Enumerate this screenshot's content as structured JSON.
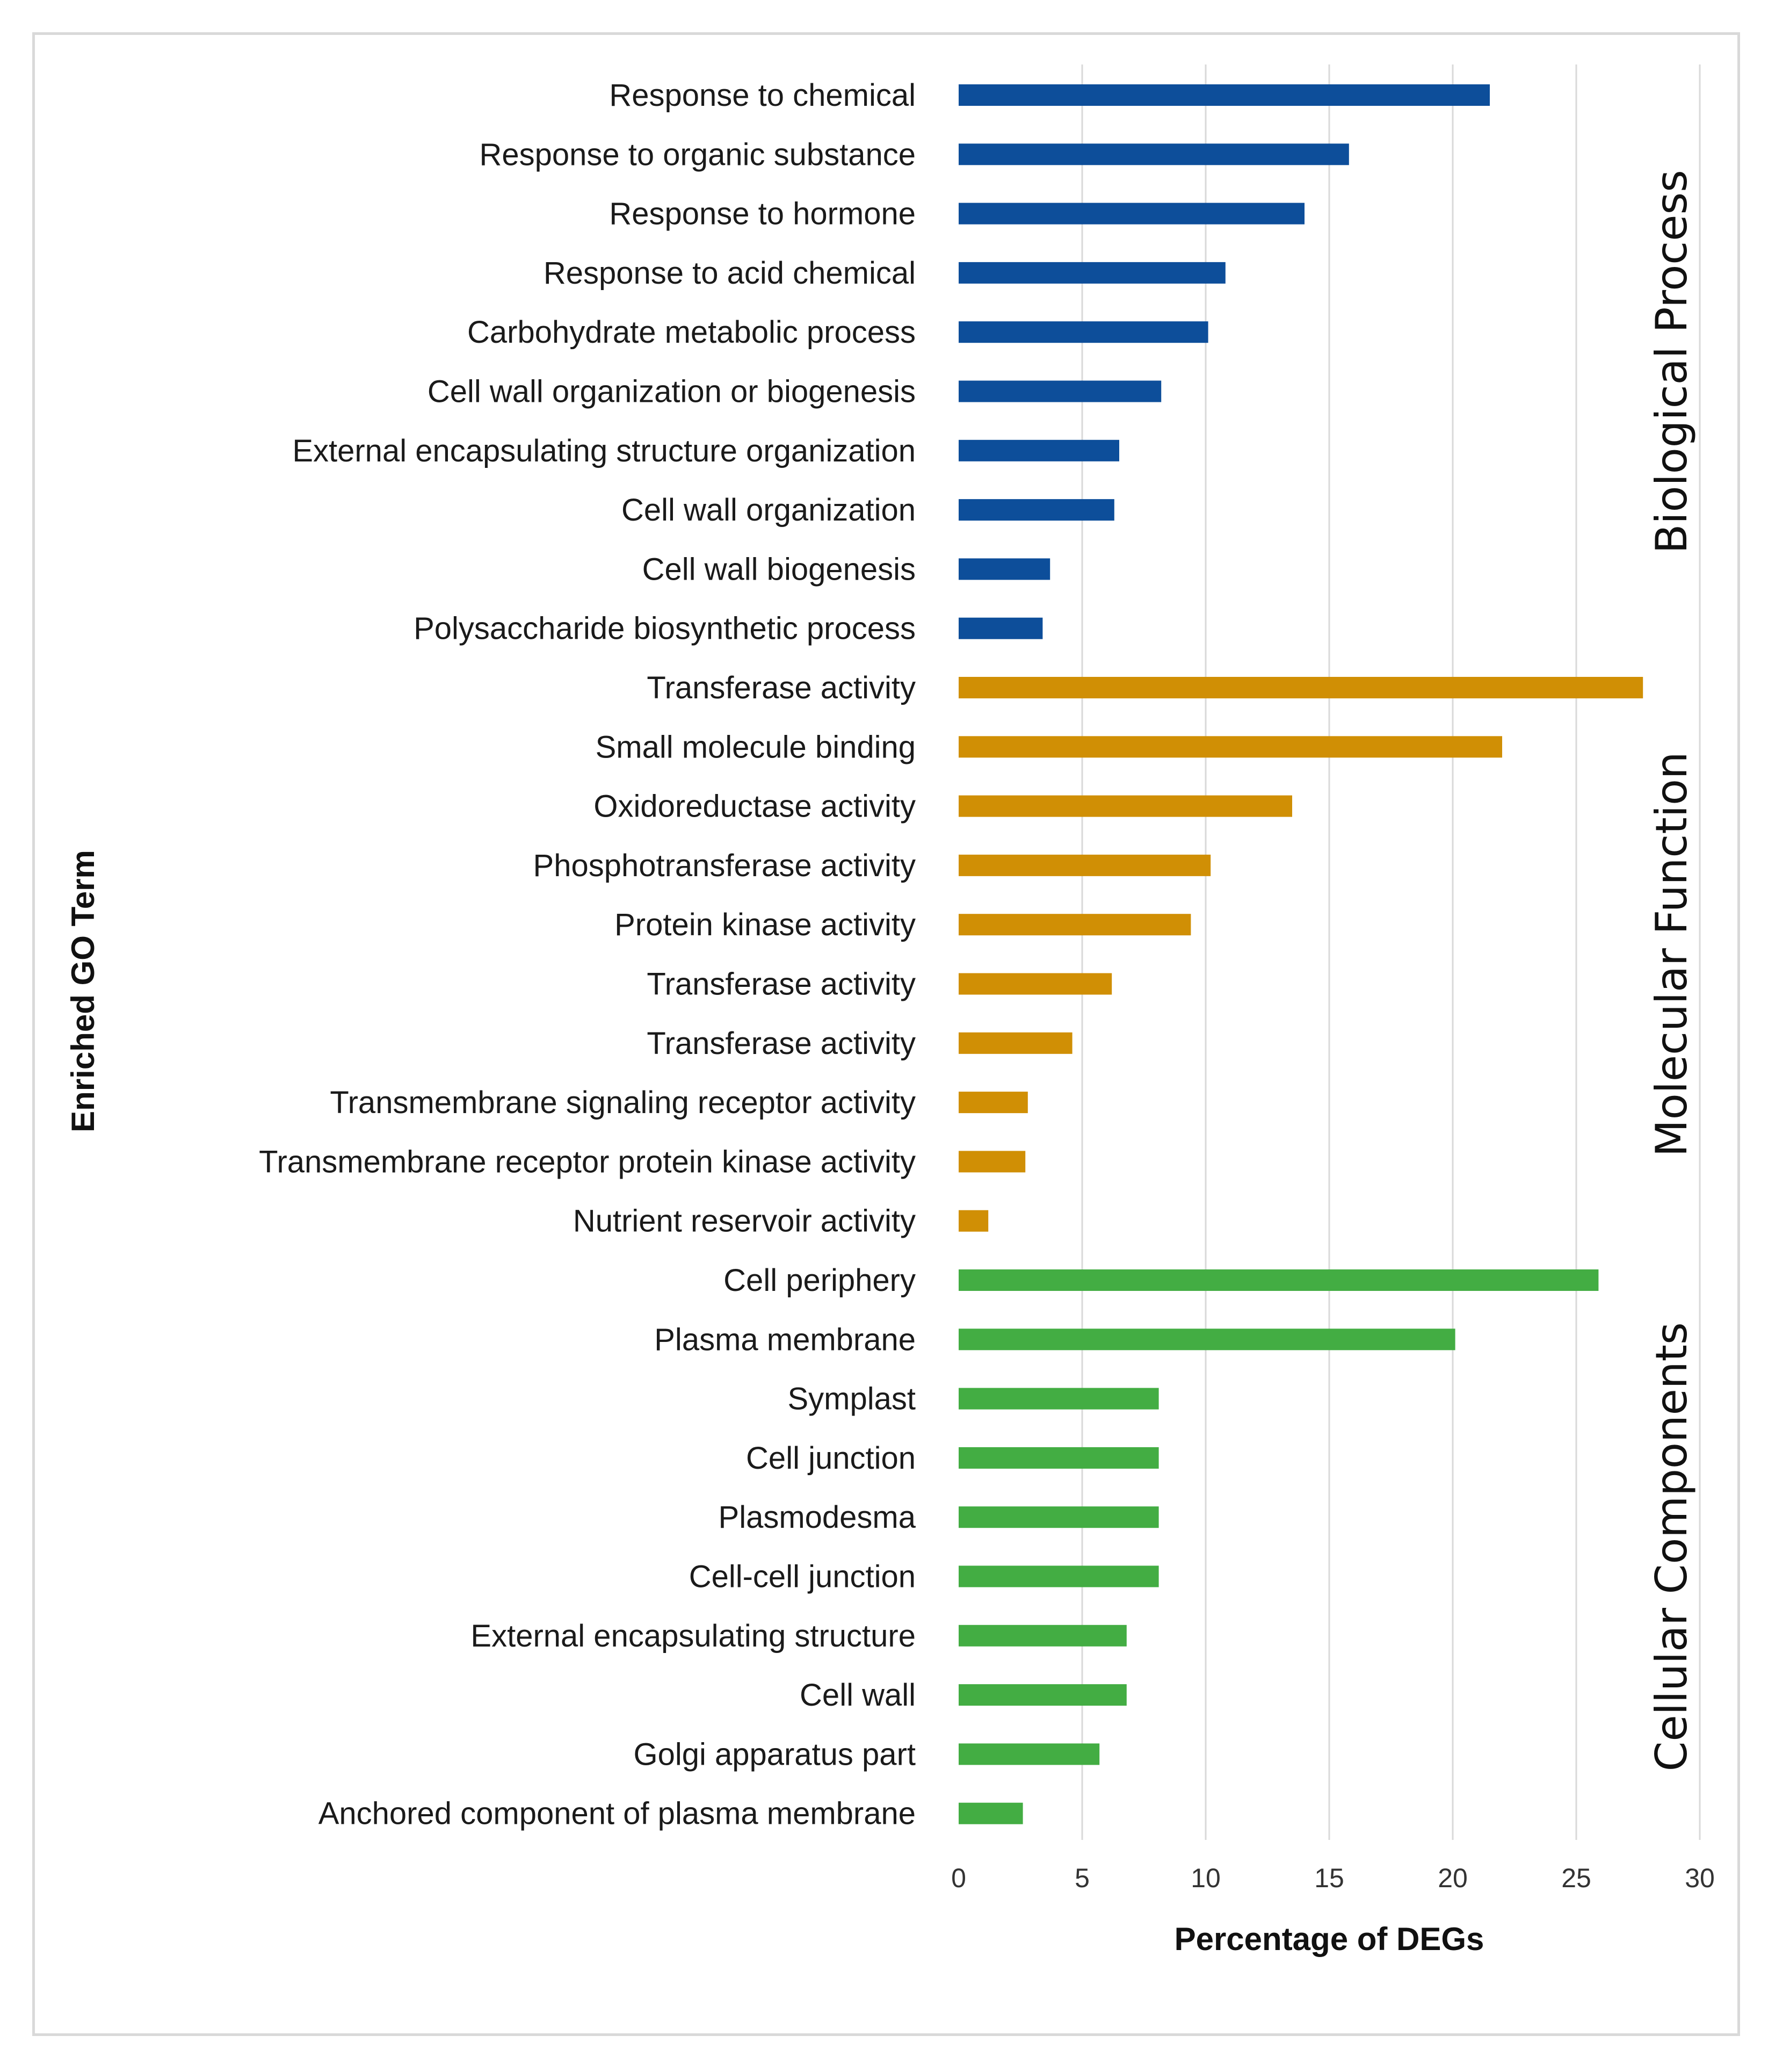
{
  "chart_data": {
    "type": "bar",
    "orientation": "horizontal",
    "title": "",
    "xlabel": "Percentage of DEGs",
    "ylabel": "Enriched GO Term",
    "xlim": [
      0,
      30
    ],
    "xticks": [
      0,
      5,
      10,
      15,
      20,
      25,
      30
    ],
    "grid": true,
    "groups": [
      {
        "name": "Biological Process",
        "color": "#0d4e9a",
        "categories": [
          "Response to chemical",
          "Response to organic substance",
          "Response to hormone",
          "Response to acid chemical",
          "Carbohydrate metabolic process",
          "Cell wall organization or biogenesis",
          "External encapsulating structure organization",
          "Cell wall organization",
          "Cell wall biogenesis",
          "Polysaccharide biosynthetic process"
        ],
        "values": [
          21.5,
          15.8,
          14.0,
          10.8,
          10.1,
          8.2,
          6.5,
          6.3,
          3.7,
          3.4
        ]
      },
      {
        "name": "Molecular Function",
        "color": "#d08f05",
        "categories": [
          "Transferase activity",
          "Small molecule binding",
          "Oxidoreductase activity",
          "Phosphotransferase activity",
          "Protein kinase activity",
          "Transferase activity",
          "Transferase activity",
          "Transmembrane signaling receptor activity",
          "Transmembrane receptor protein kinase activity",
          "Nutrient reservoir activity"
        ],
        "values": [
          27.7,
          22.0,
          13.5,
          10.2,
          9.4,
          6.2,
          4.6,
          2.8,
          2.7,
          1.2
        ]
      },
      {
        "name": "Cellular Components",
        "color": "#43ad43",
        "categories": [
          "Cell periphery",
          "Plasma membrane",
          "Symplast",
          "Cell junction",
          "Plasmodesma",
          "Cell-cell junction",
          "External encapsulating structure",
          "Cell wall",
          "Golgi apparatus part",
          "Anchored component of plasma membrane"
        ],
        "values": [
          25.9,
          20.1,
          8.1,
          8.1,
          8.1,
          8.1,
          6.8,
          6.8,
          5.7,
          2.6
        ]
      }
    ]
  }
}
